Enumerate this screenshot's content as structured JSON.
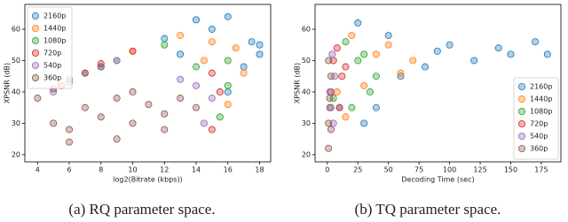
{
  "chart_data": [
    {
      "type": "scatter",
      "caption": "(a) RQ parameter space.",
      "xlabel": "log2(Bitrate (kbps))",
      "ylabel": "XPSNR (dB)",
      "xlim": [
        3.2,
        18.7
      ],
      "xticks": [
        4,
        6,
        8,
        10,
        12,
        14,
        16,
        18
      ],
      "ylim": [
        17.7,
        67.9
      ],
      "yticks": [
        20,
        30,
        40,
        50,
        60
      ],
      "legend": "upper left",
      "series": [
        {
          "name": "2160p",
          "color": "#1f77b4",
          "x": [
            8,
            12,
            14,
            16,
            17.5,
            18,
            17,
            16,
            18,
            15,
            13
          ],
          "values": [
            48,
            57,
            63,
            64,
            56,
            52,
            48,
            40,
            55,
            60,
            52
          ]
        },
        {
          "name": "1440p",
          "color": "#ff7f0e",
          "x": [
            7,
            10,
            13,
            16.5,
            17,
            16,
            14.5,
            15
          ],
          "values": [
            46,
            53,
            58,
            54,
            46,
            36,
            50,
            56
          ]
        },
        {
          "name": "1080p",
          "color": "#2ca02c",
          "x": [
            6,
            9,
            12,
            16,
            16,
            15.5,
            14
          ],
          "values": [
            43,
            50,
            55,
            50,
            42,
            32,
            48
          ]
        },
        {
          "name": "720p",
          "color": "#d62728",
          "x": [
            5.5,
            8,
            10,
            15,
            15.5,
            15
          ],
          "values": [
            42,
            49,
            53,
            46,
            40,
            28
          ]
        },
        {
          "name": "540p",
          "color": "#9467bd",
          "x": [
            5,
            7,
            9,
            14,
            15,
            14.5,
            13
          ],
          "values": [
            40,
            46,
            50,
            42,
            38,
            30,
            44
          ]
        },
        {
          "name": "360p",
          "color": "#8c564b",
          "x": [
            4,
            5,
            6,
            7,
            8,
            5,
            6,
            7,
            8,
            9,
            10,
            11,
            12,
            13,
            14,
            6,
            9,
            10,
            12
          ],
          "values": [
            38,
            41,
            44,
            46,
            48,
            30,
            28,
            35,
            32,
            38,
            30,
            36,
            33,
            38,
            35,
            24,
            25,
            40,
            28
          ]
        }
      ]
    },
    {
      "type": "scatter",
      "caption": "(b) TQ parameter space.",
      "xlabel": "Decoding Time (sec)",
      "ylabel": "XPSNR (dB)",
      "xlim": [
        -10,
        191
      ],
      "xticks": [
        0,
        25,
        50,
        75,
        100,
        125,
        150,
        175
      ],
      "ylim": [
        17.7,
        67.9
      ],
      "yticks": [
        20,
        30,
        40,
        50,
        60
      ],
      "legend": "lower right",
      "series": [
        {
          "name": "2160p",
          "color": "#1f77b4",
          "x": [
            10,
            25,
            50,
            100,
            150,
            180,
            120,
            80,
            40,
            30,
            60,
            170,
            90,
            140
          ],
          "values": [
            35,
            62,
            58,
            55,
            52,
            52,
            50,
            48,
            35,
            30,
            45,
            56,
            53,
            54
          ]
        },
        {
          "name": "1440p",
          "color": "#ff7f0e",
          "x": [
            8,
            20,
            40,
            70,
            60,
            30,
            50,
            15
          ],
          "values": [
            40,
            58,
            52,
            50,
            46,
            42,
            55,
            32
          ]
        },
        {
          "name": "1080p",
          "color": "#2ca02c",
          "x": [
            5,
            15,
            25,
            40,
            35,
            30,
            20
          ],
          "values": [
            38,
            56,
            50,
            45,
            40,
            52,
            35
          ]
        },
        {
          "name": "720p",
          "color": "#d62728",
          "x": [
            3,
            8,
            12,
            10,
            5,
            15
          ],
          "values": [
            40,
            54,
            45,
            35,
            50,
            48
          ]
        },
        {
          "name": "540p",
          "color": "#9467bd",
          "x": [
            2,
            4,
            5,
            6,
            3
          ],
          "values": [
            40,
            52,
            30,
            45,
            35
          ]
        },
        {
          "name": "360p",
          "color": "#8c564b",
          "x": [
            1,
            1,
            2,
            3,
            1,
            2,
            3
          ],
          "values": [
            22,
            30,
            38,
            45,
            50,
            35,
            28
          ]
        }
      ]
    }
  ]
}
